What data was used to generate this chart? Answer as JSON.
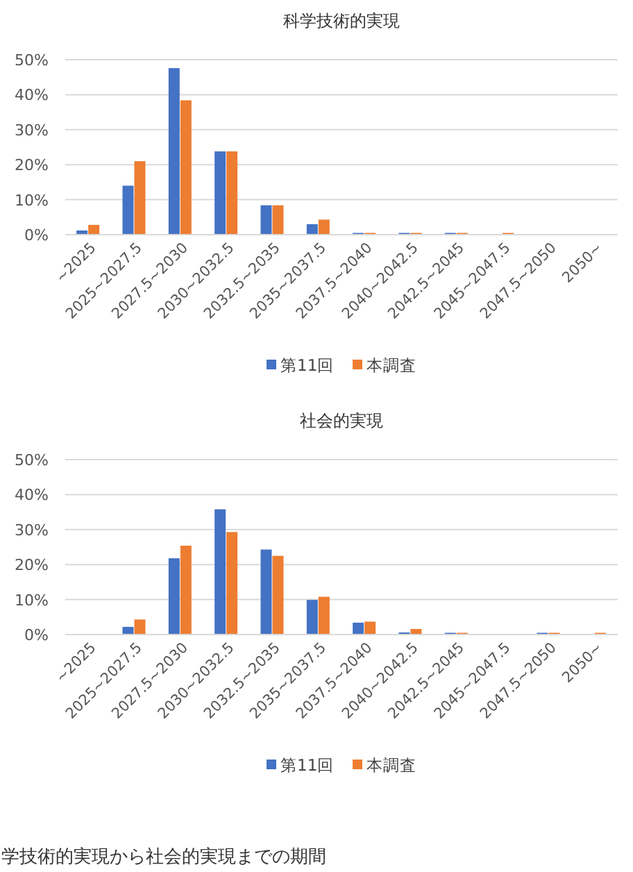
{
  "chart_data": [
    {
      "type": "bar",
      "title": "科学技術的実現",
      "categories": [
        "~2025",
        "2025~2027.5",
        "2027.5~2030",
        "2030~2032.5",
        "2032.5~2035",
        "2035~2037.5",
        "2037.5~2040",
        "2040~2042.5",
        "2042.5~2045",
        "2045~2047.5",
        "2047.5~2050",
        "2050~"
      ],
      "series": [
        {
          "name": "第11回",
          "color": "#4472c4",
          "values": [
            1.2,
            14,
            47.6,
            23.8,
            8.4,
            3,
            0.5,
            0.5,
            0.5,
            0,
            0,
            0
          ]
        },
        {
          "name": "本調査",
          "color": "#ed7d31",
          "values": [
            2.8,
            21,
            38.4,
            23.8,
            8.4,
            4.3,
            0.5,
            0.5,
            0.5,
            0.5,
            0,
            0
          ]
        }
      ],
      "ylim": [
        0,
        50
      ],
      "yticks": [
        {
          "value": 0,
          "label": "0%"
        },
        {
          "value": 10,
          "label": "10%"
        },
        {
          "value": 20,
          "label": "20%"
        },
        {
          "value": 30,
          "label": "30%"
        },
        {
          "value": 40,
          "label": "40%"
        },
        {
          "value": 50,
          "label": "50%"
        }
      ],
      "grid": "y",
      "legend": "bottom"
    },
    {
      "type": "bar",
      "title": "社会的実現",
      "categories": [
        "~2025",
        "2025~2027.5",
        "2027.5~2030",
        "2030~2032.5",
        "2032.5~2035",
        "2035~2037.5",
        "2037.5~2040",
        "2040~2042.5",
        "2042.5~2045",
        "2045~2047.5",
        "2047.5~2050",
        "2050~"
      ],
      "series": [
        {
          "name": "第11回",
          "color": "#4472c4",
          "values": [
            0,
            2.2,
            21.8,
            35.8,
            24.3,
            9.9,
            3.4,
            0.6,
            0.5,
            0,
            0.5,
            0
          ]
        },
        {
          "name": "本調査",
          "color": "#ed7d31",
          "values": [
            0,
            4.3,
            25.4,
            29.3,
            22.5,
            10.8,
            3.7,
            1.6,
            0.5,
            0,
            0.5,
            0.5
          ]
        }
      ],
      "ylim": [
        0,
        50
      ],
      "yticks": [
        {
          "value": 0,
          "label": "0%"
        },
        {
          "value": 10,
          "label": "10%"
        },
        {
          "value": 20,
          "label": "20%"
        },
        {
          "value": 30,
          "label": "30%"
        },
        {
          "value": 40,
          "label": "40%"
        },
        {
          "value": 50,
          "label": "50%"
        }
      ],
      "grid": "y",
      "legend": "bottom",
      "annotations": [
        "学技術的実現から社会的実現までの期間"
      ]
    }
  ]
}
